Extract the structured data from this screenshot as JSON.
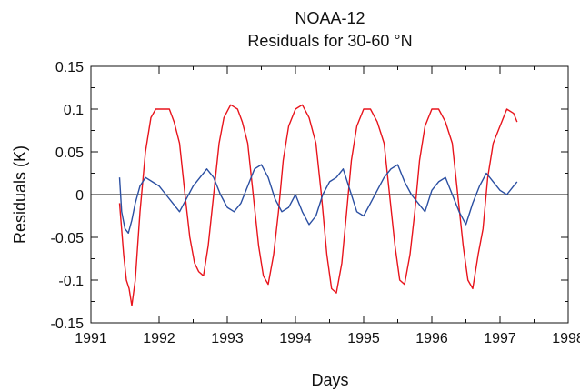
{
  "chart_data": {
    "type": "line",
    "title": "NOAA-12",
    "subtitle": "Residuals for 30-60 °N",
    "xlabel": "Days",
    "ylabel": "Residuals (K)",
    "xlim": [
      1991,
      1998
    ],
    "ylim": [
      -0.15,
      0.15
    ],
    "x_ticks": [
      "1991",
      "1992",
      "1993",
      "1994",
      "1995",
      "1996",
      "1997",
      "1998"
    ],
    "y_ticks": [
      "-0.15",
      "-0.1",
      "-0.05",
      "0",
      "0.05",
      "0.1",
      "0.15"
    ],
    "grid": false,
    "legend": "none",
    "zero_line": 0,
    "series": [
      {
        "color": "#e8141c",
        "x": [
          1991.42,
          1991.48,
          1991.52,
          1991.56,
          1991.6,
          1991.65,
          1991.72,
          1991.8,
          1991.88,
          1991.95,
          1992.05,
          1992.15,
          1992.22,
          1992.3,
          1992.38,
          1992.45,
          1992.52,
          1992.58,
          1992.65,
          1992.72,
          1992.8,
          1992.88,
          1992.95,
          1993.05,
          1993.15,
          1993.22,
          1993.3,
          1993.38,
          1993.46,
          1993.53,
          1993.6,
          1993.68,
          1993.75,
          1993.82,
          1993.9,
          1994.0,
          1994.1,
          1994.2,
          1994.3,
          1994.38,
          1994.46,
          1994.53,
          1994.6,
          1994.68,
          1994.75,
          1994.82,
          1994.9,
          1995.0,
          1995.1,
          1995.2,
          1995.3,
          1995.38,
          1995.46,
          1995.53,
          1995.6,
          1995.68,
          1995.75,
          1995.82,
          1995.9,
          1996.0,
          1996.1,
          1996.2,
          1996.3,
          1996.38,
          1996.46,
          1996.53,
          1996.6,
          1996.68,
          1996.75,
          1996.82,
          1996.9,
          1997.0,
          1997.1,
          1997.2,
          1997.25
        ],
        "y": [
          -0.01,
          -0.07,
          -0.1,
          -0.11,
          -0.13,
          -0.1,
          -0.02,
          0.05,
          0.09,
          0.1,
          0.1,
          0.1,
          0.085,
          0.06,
          0.0,
          -0.05,
          -0.08,
          -0.09,
          -0.095,
          -0.06,
          0.0,
          0.06,
          0.09,
          0.105,
          0.1,
          0.085,
          0.06,
          0.0,
          -0.06,
          -0.095,
          -0.105,
          -0.07,
          -0.02,
          0.04,
          0.08,
          0.1,
          0.105,
          0.09,
          0.06,
          0.0,
          -0.07,
          -0.11,
          -0.115,
          -0.08,
          -0.02,
          0.04,
          0.08,
          0.1,
          0.1,
          0.085,
          0.06,
          0.0,
          -0.06,
          -0.1,
          -0.105,
          -0.07,
          -0.02,
          0.04,
          0.08,
          0.1,
          0.1,
          0.085,
          0.06,
          0.0,
          -0.06,
          -0.1,
          -0.11,
          -0.07,
          -0.04,
          0.02,
          0.06,
          0.08,
          0.1,
          0.095,
          0.085
        ]
      },
      {
        "color": "#2b4fa2",
        "x": [
          1991.42,
          1991.45,
          1991.5,
          1991.55,
          1991.6,
          1991.65,
          1991.72,
          1991.8,
          1991.9,
          1992.0,
          1992.1,
          1992.2,
          1992.3,
          1992.4,
          1992.5,
          1992.6,
          1992.7,
          1992.8,
          1992.9,
          1993.0,
          1993.1,
          1993.2,
          1993.3,
          1993.4,
          1993.5,
          1993.6,
          1993.7,
          1993.8,
          1993.9,
          1994.0,
          1994.1,
          1994.2,
          1994.3,
          1994.4,
          1994.5,
          1994.6,
          1994.7,
          1994.8,
          1994.9,
          1995.0,
          1995.1,
          1995.2,
          1995.3,
          1995.4,
          1995.5,
          1995.6,
          1995.7,
          1995.8,
          1995.9,
          1996.0,
          1996.1,
          1996.2,
          1996.3,
          1996.4,
          1996.5,
          1996.6,
          1996.7,
          1996.8,
          1996.9,
          1997.0,
          1997.1,
          1997.2,
          1997.25
        ],
        "y": [
          0.02,
          -0.02,
          -0.04,
          -0.045,
          -0.03,
          -0.01,
          0.01,
          0.02,
          0.015,
          0.01,
          0.0,
          -0.01,
          -0.02,
          -0.005,
          0.01,
          0.02,
          0.03,
          0.02,
          0.0,
          -0.015,
          -0.02,
          -0.01,
          0.01,
          0.03,
          0.035,
          0.02,
          -0.005,
          -0.02,
          -0.015,
          0.0,
          -0.02,
          -0.035,
          -0.025,
          0.0,
          0.015,
          0.02,
          0.03,
          0.005,
          -0.02,
          -0.025,
          -0.01,
          0.005,
          0.02,
          0.03,
          0.035,
          0.015,
          0.0,
          -0.01,
          -0.02,
          0.005,
          0.015,
          0.02,
          0.0,
          -0.02,
          -0.035,
          -0.01,
          0.01,
          0.025,
          0.015,
          0.005,
          0.0,
          0.01,
          0.015
        ]
      }
    ]
  }
}
